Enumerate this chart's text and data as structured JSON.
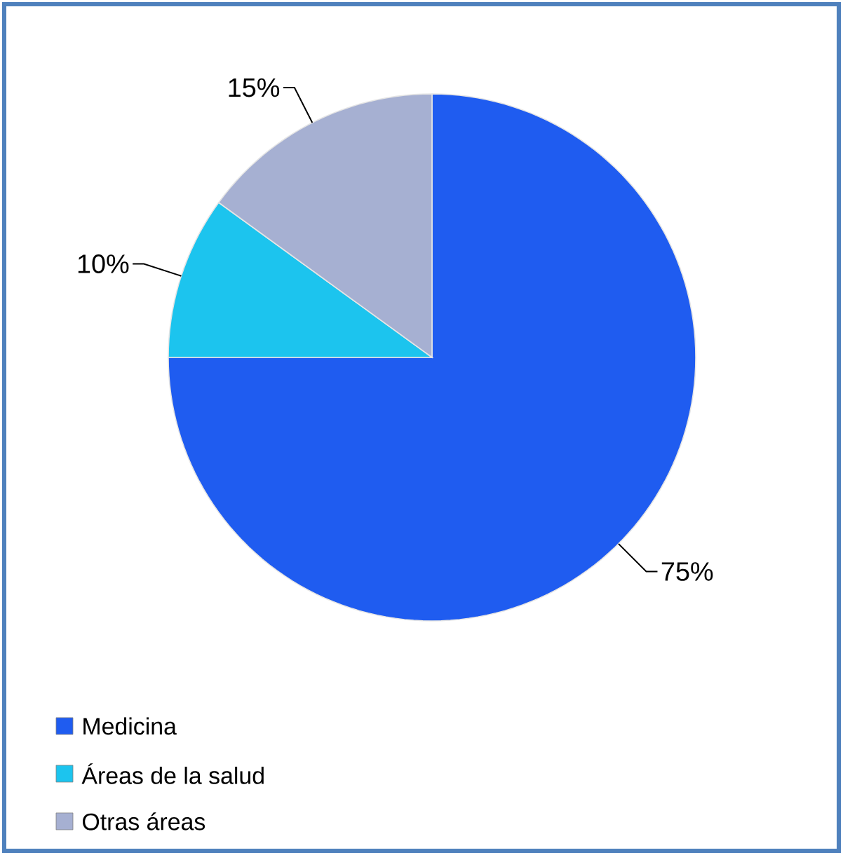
{
  "chart_data": {
    "type": "pie",
    "categories": [
      "Medicina",
      "Áreas de la salud",
      "Otras áreas"
    ],
    "values": [
      75,
      10,
      15
    ],
    "colors": [
      "#1f5cf0",
      "#1cc4ee",
      "#a6b0d2"
    ],
    "value_labels": [
      "75%",
      "10%",
      "15%"
    ],
    "legend": "bottom left"
  }
}
